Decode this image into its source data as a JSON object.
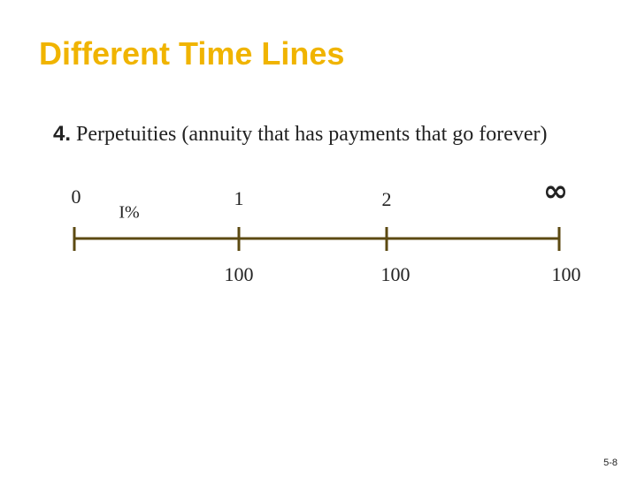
{
  "header": {
    "title": "Different Time Lines"
  },
  "body": {
    "number": "4.",
    "text": "Perpetuities (annuity that has payments that go forever)"
  },
  "timeline": {
    "periods": [
      "0",
      "1",
      "2",
      "∞"
    ],
    "rate": "I%",
    "payments": [
      "100",
      "100",
      "100"
    ]
  },
  "footer": {
    "page": "5-8"
  }
}
